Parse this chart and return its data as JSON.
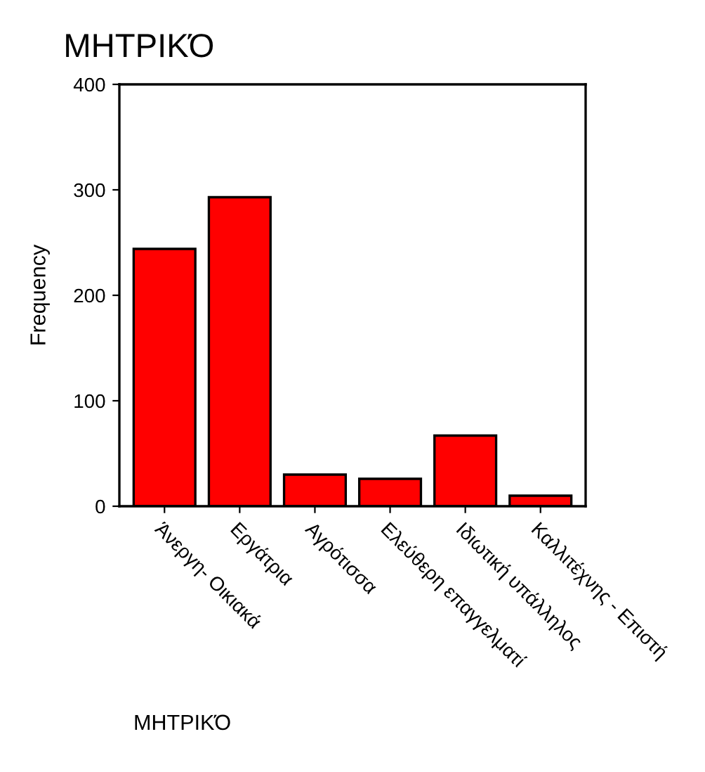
{
  "chart_data": {
    "type": "bar",
    "title": "ΜΗΤΡΙΚΌ",
    "xlabel": "ΜΗΤΡΙΚΌ",
    "ylabel": "Frequency",
    "categories": [
      "Άνεργη- Οικιακά",
      "Εργάτρια",
      "Αγρότισσα",
      "Ελεύθερη επαγγελματί",
      "Ιδιωτική υπάλληλος",
      "Καλλιτέχνης - Επιστή"
    ],
    "values": [
      244,
      293,
      30,
      26,
      67,
      10
    ],
    "color": "#ff0000",
    "ylim": [
      0,
      400
    ],
    "yticks": [
      0,
      100,
      200,
      300,
      400
    ],
    "grid": false
  }
}
